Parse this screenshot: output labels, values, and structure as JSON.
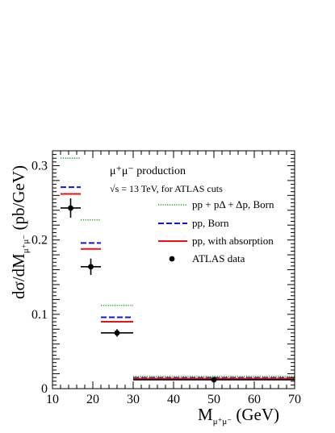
{
  "chart_data": {
    "type": "step",
    "annotation_line1": "μ⁺μ⁻ production",
    "annotation_line2": "√s = 13 TeV,  for ATLAS cuts",
    "xlabel": {
      "main": "M",
      "sub": "μ⁺μ⁻",
      "unit": " (GeV)"
    },
    "ylabel": {
      "main": "dσ/dM",
      "sub": "μ⁺μ⁻",
      "unit": " (pb/GeV)"
    },
    "xlim": [
      10,
      70
    ],
    "ylim": [
      0,
      0.32
    ],
    "x_ticks": [
      10,
      20,
      30,
      40,
      50,
      60,
      70
    ],
    "y_ticks": [
      0,
      0.1,
      0.2,
      0.3
    ],
    "y_tick_labels": [
      "0",
      "0.1",
      "0.2",
      "0.3"
    ],
    "legend_position": "right, below annotation",
    "series": [
      {
        "name": "pp + pΔ + Δp, Born",
        "color": "#22aa22",
        "style": "dotted",
        "bins": [
          [
            12,
            17,
            0.31
          ],
          [
            17,
            22,
            0.227
          ],
          [
            22,
            30,
            0.112
          ],
          [
            30,
            70,
            0.0165
          ]
        ]
      },
      {
        "name": "pp, Born",
        "color": "#1111ee",
        "style": "dashed",
        "bins": [
          [
            12,
            17,
            0.271
          ],
          [
            17,
            22,
            0.196
          ],
          [
            22,
            30,
            0.096
          ],
          [
            30,
            70,
            0.0145
          ]
        ]
      },
      {
        "name": "pp, with absorption",
        "color": "#ee1111",
        "style": "solid",
        "bins": [
          [
            12,
            17,
            0.262
          ],
          [
            17,
            22,
            0.188
          ],
          [
            22,
            30,
            0.09
          ],
          [
            30,
            70,
            0.0135
          ]
        ]
      },
      {
        "name": "ATLAS data",
        "color": "#000000",
        "style": "points",
        "points": [
          {
            "x": 14.5,
            "y": 0.243,
            "xerr": [
              12,
              17
            ],
            "yerr": 0.013
          },
          {
            "x": 19.5,
            "y": 0.164,
            "xerr": [
              17,
              22
            ],
            "yerr": 0.011
          },
          {
            "x": 26,
            "y": 0.075,
            "xerr": [
              22,
              30
            ],
            "yerr": 0.005
          },
          {
            "x": 50,
            "y": 0.012,
            "xerr": [
              30,
              70
            ],
            "yerr": 0.001
          }
        ]
      }
    ]
  }
}
